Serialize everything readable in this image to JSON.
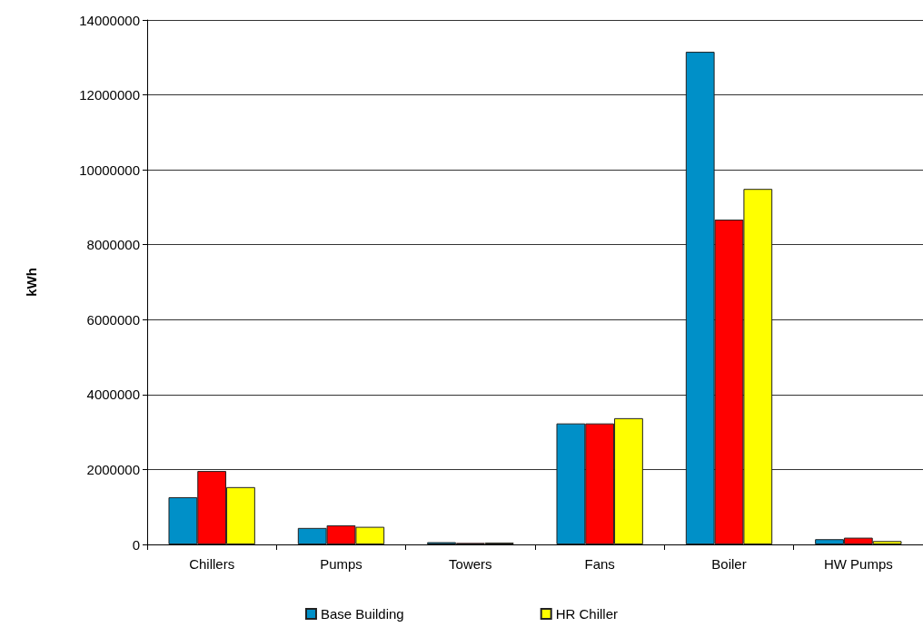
{
  "chart_data": {
    "type": "bar",
    "ylabel": "kWh",
    "categories": [
      "Chillers",
      "Pumps",
      "Towers",
      "Fans",
      "Boiler",
      "HW Pumps"
    ],
    "series": [
      {
        "name": "Base Building",
        "color": "#0090c8",
        "values": [
          1260000,
          440000,
          60000,
          3230000,
          13150000,
          140000
        ]
      },
      {
        "color": "#ff0000",
        "values": [
          1960000,
          510000,
          40000,
          3230000,
          8670000,
          180000
        ]
      },
      {
        "name": "HR Chiller",
        "color": "#ffff00",
        "values": [
          1530000,
          470000,
          50000,
          3370000,
          9490000,
          90000
        ]
      }
    ],
    "ylim": [
      0,
      14000000
    ],
    "yticks": [
      0,
      2000000,
      4000000,
      6000000,
      8000000,
      10000000,
      12000000,
      14000000
    ],
    "grid": "y",
    "legend": "bottom"
  }
}
